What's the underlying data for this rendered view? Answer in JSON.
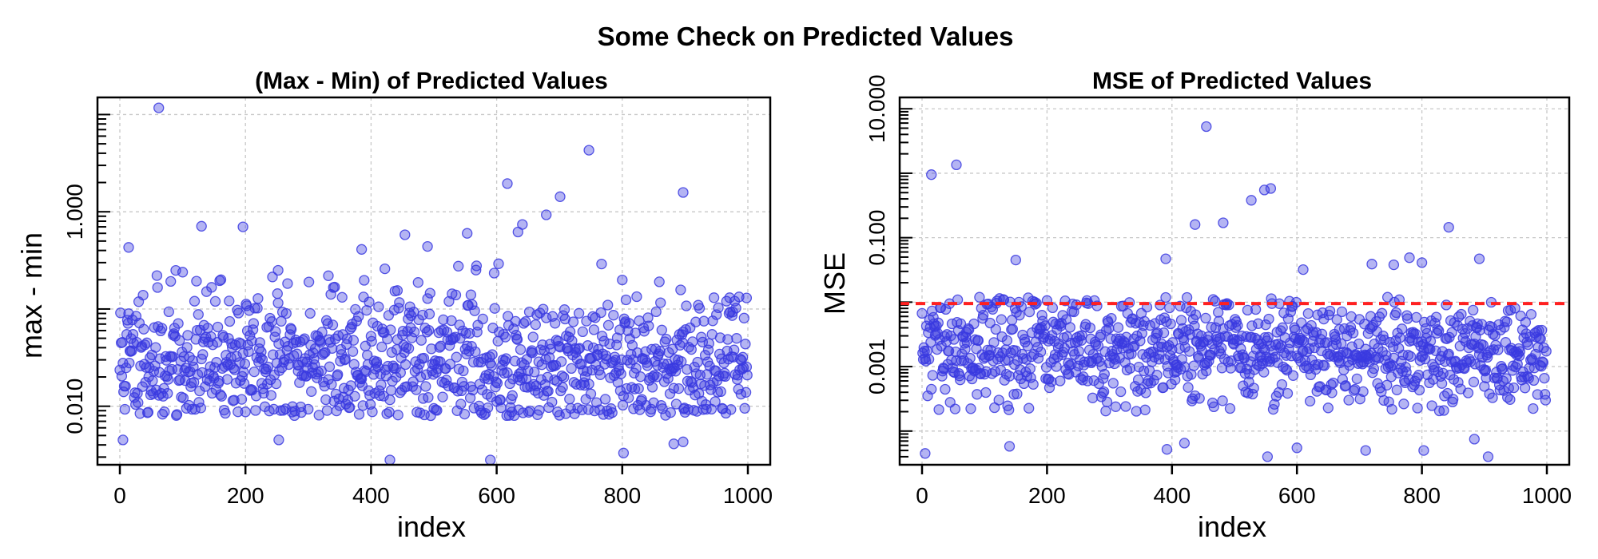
{
  "title": "Some Check on Predicted Values",
  "colors": {
    "point": "#3a3ae0",
    "refline": "#ff2020"
  },
  "chart_data": [
    {
      "type": "scatter",
      "title": "(Max - Min) of Predicted Values",
      "xlabel": "index",
      "ylabel": "max - min",
      "xlim": [
        0,
        1000
      ],
      "xticks": [
        0,
        200,
        400,
        600,
        800,
        1000
      ],
      "xtick_labels": [
        "0",
        "200",
        "400",
        "600",
        "800",
        "1000"
      ],
      "yscale": "log",
      "ylim": [
        0.0025,
        15
      ],
      "yticks": [
        0.01,
        1
      ],
      "ytick_labels": [
        "0.010",
        "1.000"
      ],
      "ygrid": [
        0.01,
        0.1,
        1,
        10
      ],
      "grid": true,
      "point_color": "#3a3ae0",
      "noise_points": {
        "count": 1000,
        "typical_range": [
          0.008,
          0.3
        ],
        "center": 0.03
      },
      "points": [
        {
          "x": 62,
          "y": 11.7
        },
        {
          "x": 747,
          "y": 4.3
        },
        {
          "x": 617,
          "y": 1.95
        },
        {
          "x": 897,
          "y": 1.58
        },
        {
          "x": 701,
          "y": 1.43
        },
        {
          "x": 679,
          "y": 0.93
        },
        {
          "x": 641,
          "y": 0.74
        },
        {
          "x": 634,
          "y": 0.62
        },
        {
          "x": 130,
          "y": 0.71
        },
        {
          "x": 196,
          "y": 0.7
        },
        {
          "x": 454,
          "y": 0.58
        },
        {
          "x": 553,
          "y": 0.6
        },
        {
          "x": 14,
          "y": 0.43
        },
        {
          "x": 490,
          "y": 0.44
        },
        {
          "x": 385,
          "y": 0.41
        },
        {
          "x": 252,
          "y": 0.25
        },
        {
          "x": 332,
          "y": 0.22
        },
        {
          "x": 442,
          "y": 0.155
        },
        {
          "x": 559,
          "y": 0.14
        },
        {
          "x": 998,
          "y": 0.13
        },
        {
          "x": 5,
          "y": 0.0045
        },
        {
          "x": 253,
          "y": 0.0045
        },
        {
          "x": 430,
          "y": 0.0028
        },
        {
          "x": 590,
          "y": 0.0028
        },
        {
          "x": 802,
          "y": 0.0033
        },
        {
          "x": 882,
          "y": 0.0041
        },
        {
          "x": 897,
          "y": 0.0043
        }
      ]
    },
    {
      "type": "scatter",
      "title": "MSE of Predicted Values",
      "xlabel": "index",
      "ylabel": "MSE",
      "xlim": [
        0,
        1000
      ],
      "xticks": [
        0,
        200,
        400,
        600,
        800,
        1000
      ],
      "xtick_labels": [
        "0",
        "200",
        "400",
        "600",
        "800",
        "1000"
      ],
      "yscale": "log",
      "ylim": [
        3e-05,
        15
      ],
      "yticks": [
        0.001,
        0.1,
        10
      ],
      "ytick_labels": [
        "0.001",
        "0.100",
        "10.000"
      ],
      "ygrid": [
        0.0001,
        0.001,
        0.01,
        0.1,
        1,
        10
      ],
      "grid": true,
      "point_color": "#3a3ae0",
      "reference_line": {
        "y": 0.0095,
        "color": "#ff2020",
        "style": "dashed"
      },
      "noise_points": {
        "count": 1000,
        "typical_range": [
          0.0002,
          0.012
        ],
        "center": 0.0017
      },
      "points": [
        {
          "x": 455,
          "y": 5.3
        },
        {
          "x": 55,
          "y": 1.35
        },
        {
          "x": 15,
          "y": 0.95
        },
        {
          "x": 558,
          "y": 0.58
        },
        {
          "x": 548,
          "y": 0.55
        },
        {
          "x": 527,
          "y": 0.38
        },
        {
          "x": 482,
          "y": 0.17
        },
        {
          "x": 437,
          "y": 0.16
        },
        {
          "x": 843,
          "y": 0.145
        },
        {
          "x": 150,
          "y": 0.045
        },
        {
          "x": 390,
          "y": 0.047
        },
        {
          "x": 780,
          "y": 0.049
        },
        {
          "x": 892,
          "y": 0.047
        },
        {
          "x": 610,
          "y": 0.032
        },
        {
          "x": 800,
          "y": 0.041
        },
        {
          "x": 720,
          "y": 0.039
        },
        {
          "x": 755,
          "y": 0.038
        },
        {
          "x": 5,
          "y": 4.5e-05
        },
        {
          "x": 420,
          "y": 6.5e-05
        },
        {
          "x": 553,
          "y": 4e-05
        },
        {
          "x": 600,
          "y": 5.5e-05
        },
        {
          "x": 710,
          "y": 5e-05
        },
        {
          "x": 803,
          "y": 5e-05
        },
        {
          "x": 906,
          "y": 4e-05
        },
        {
          "x": 140,
          "y": 5.8e-05
        },
        {
          "x": 392,
          "y": 5.2e-05
        },
        {
          "x": 884,
          "y": 7.5e-05
        }
      ]
    }
  ]
}
